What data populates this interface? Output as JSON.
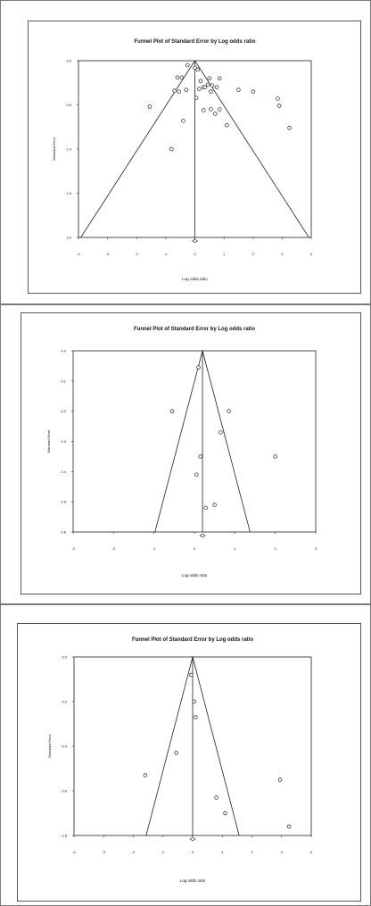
{
  "chart_data": [
    {
      "type": "scatter",
      "title": "Funnel Plot of Standard Error by Log odds ratio",
      "xlabel": "Log odds ratio",
      "ylabel": "Standard Error",
      "xlim": [
        -4,
        4
      ],
      "ylim": [
        0.0,
        2.0
      ],
      "x_ticks": [
        "-4",
        "-3",
        "-2",
        "-1",
        "0",
        "1",
        "2",
        "3",
        "4"
      ],
      "y_ticks": [
        "0.0",
        "0.5",
        "1.0",
        "1.5",
        "2.0"
      ],
      "y_reversed": true,
      "funnel_apex_x": 0.0,
      "pooled_estimate": 0.0,
      "points": [
        {
          "x": -0.25,
          "y": 0.05
        },
        {
          "x": -0.45,
          "y": 0.19
        },
        {
          "x": -0.6,
          "y": 0.19
        },
        {
          "x": -0.3,
          "y": 0.33
        },
        {
          "x": -0.7,
          "y": 0.34
        },
        {
          "x": -0.55,
          "y": 0.35
        },
        {
          "x": -1.55,
          "y": 0.52
        },
        {
          "x": -0.4,
          "y": 0.68
        },
        {
          "x": -0.8,
          "y": 1.0
        },
        {
          "x": 0.0,
          "y": 0.08
        },
        {
          "x": 0.1,
          "y": 0.1
        },
        {
          "x": 0.2,
          "y": 0.23
        },
        {
          "x": 0.3,
          "y": 0.3
        },
        {
          "x": 0.15,
          "y": 0.32
        },
        {
          "x": 0.35,
          "y": 0.3
        },
        {
          "x": 0.45,
          "y": 0.27
        },
        {
          "x": 0.6,
          "y": 0.28
        },
        {
          "x": 0.75,
          "y": 0.3
        },
        {
          "x": 0.55,
          "y": 0.35
        },
        {
          "x": 0.85,
          "y": 0.2
        },
        {
          "x": 0.5,
          "y": 0.2
        },
        {
          "x": 0.05,
          "y": 0.42
        },
        {
          "x": 0.3,
          "y": 0.56
        },
        {
          "x": 0.55,
          "y": 0.55
        },
        {
          "x": 0.7,
          "y": 0.6
        },
        {
          "x": 0.85,
          "y": 0.55
        },
        {
          "x": 1.1,
          "y": 0.73
        },
        {
          "x": 1.5,
          "y": 0.33
        },
        {
          "x": 2.0,
          "y": 0.35
        },
        {
          "x": 2.85,
          "y": 0.43
        },
        {
          "x": 2.9,
          "y": 0.51
        },
        {
          "x": 3.25,
          "y": 0.76
        }
      ],
      "pooled_marker_value": {
        "x": 0.0,
        "y": 2.0
      }
    },
    {
      "type": "scatter",
      "title": "Funnel Plot of Standard Error by Log odds ratio",
      "xlabel": "Log odds ratio",
      "ylabel": "Standard Error",
      "xlim": [
        -3,
        3
      ],
      "ylim": [
        0.0,
        0.6
      ],
      "x_ticks": [
        "-3",
        "-2",
        "-1",
        "0",
        "1",
        "2",
        "3"
      ],
      "y_ticks": [
        "0.0",
        "0.1",
        "0.2",
        "0.3",
        "0.4",
        "0.5",
        "0.6"
      ],
      "y_reversed": true,
      "funnel_apex_x": 0.2,
      "pooled_estimate": 0.2,
      "points": [
        {
          "x": 0.1,
          "y": 0.055
        },
        {
          "x": -0.55,
          "y": 0.2
        },
        {
          "x": 0.85,
          "y": 0.2
        },
        {
          "x": 0.65,
          "y": 0.27
        },
        {
          "x": 0.15,
          "y": 0.35
        },
        {
          "x": 0.05,
          "y": 0.41
        },
        {
          "x": 2.0,
          "y": 0.35
        },
        {
          "x": 0.5,
          "y": 0.51
        },
        {
          "x": 0.28,
          "y": 0.52
        }
      ],
      "pooled_marker_value": {
        "x": 0.2,
        "y": 0.6
      }
    },
    {
      "type": "scatter",
      "title": "Funnel Plot of Standard Error by Log odds ratio",
      "xlabel": "Log odds ratio",
      "ylabel": "Standard Error",
      "xlim": [
        -4,
        4
      ],
      "ylim": [
        0.0,
        0.8
      ],
      "x_ticks": [
        "-4",
        "-3",
        "-2",
        "-1",
        "0",
        "1",
        "2",
        "3",
        "4"
      ],
      "y_ticks": [
        "0.0",
        "0.2",
        "0.4",
        "0.6",
        "0.8"
      ],
      "y_reversed": true,
      "funnel_apex_x": 0.0,
      "pooled_estimate": 0.0,
      "points": [
        {
          "x": -0.05,
          "y": 0.08
        },
        {
          "x": 0.05,
          "y": 0.2
        },
        {
          "x": 0.1,
          "y": 0.27
        },
        {
          "x": -0.55,
          "y": 0.43
        },
        {
          "x": -1.6,
          "y": 0.53
        },
        {
          "x": 0.8,
          "y": 0.63
        },
        {
          "x": 2.95,
          "y": 0.55
        },
        {
          "x": 1.1,
          "y": 0.7
        },
        {
          "x": 3.25,
          "y": 0.76
        }
      ],
      "pooled_marker_value": {
        "x": 0.0,
        "y": 0.8
      }
    }
  ]
}
